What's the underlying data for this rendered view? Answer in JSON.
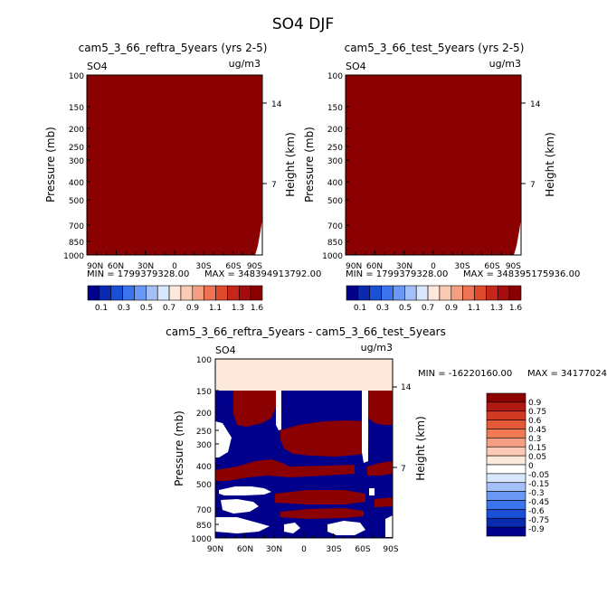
{
  "page_title": "SO4 DJF",
  "chart_data": [
    {
      "type": "heatmap",
      "title": "cam5_3_66_reftra_5years (yrs 2-5)",
      "variable": "SO4",
      "units": "ug/m3",
      "ylabel": "Pressure (mb)",
      "ylabel_right": "Height (km)",
      "x_ticks": [
        "90N",
        "60N",
        "30N",
        "0",
        "30S",
        "60S",
        "90S"
      ],
      "y_ticks": [
        "100",
        "150",
        "200",
        "250",
        "300",
        "400",
        "500",
        "700",
        "850",
        "1000"
      ],
      "height_ticks": [
        "14",
        "7"
      ],
      "ylim": [
        1000,
        100
      ],
      "min_label": "MIN = 1799379328.00",
      "max_label": "MAX = 348394913792.00",
      "fill_color": "#8b0000",
      "colorbar": {
        "labels": [
          "0.1",
          "0.3",
          "0.5",
          "0.7",
          "0.9",
          "1.1",
          "1.3",
          "1.6"
        ],
        "colors": [
          "#00008b",
          "#0a2bb0",
          "#1a4fd6",
          "#3a74ee",
          "#6a98f4",
          "#a3c0f8",
          "#d9e6fb",
          "#fde8dc",
          "#fbcab5",
          "#f59f82",
          "#ee7355",
          "#e04a2c",
          "#c8261a",
          "#a60c0c",
          "#8b0000"
        ]
      }
    },
    {
      "type": "heatmap",
      "title": "cam5_3_66_test_5years (yrs 2-5)",
      "variable": "SO4",
      "units": "ug/m3",
      "ylabel": "Pressure (mb)",
      "ylabel_right": "Height (km)",
      "x_ticks": [
        "90N",
        "60N",
        "30N",
        "0",
        "30S",
        "60S",
        "90S"
      ],
      "y_ticks": [
        "100",
        "150",
        "200",
        "250",
        "300",
        "400",
        "500",
        "700",
        "850",
        "1000"
      ],
      "height_ticks": [
        "14",
        "7"
      ],
      "ylim": [
        1000,
        100
      ],
      "min_label": "MIN = 1799379328.00",
      "max_label": "MAX = 348395175936.00",
      "fill_color": "#8b0000",
      "colorbar": {
        "labels": [
          "0.1",
          "0.3",
          "0.5",
          "0.7",
          "0.9",
          "1.1",
          "1.3",
          "1.6"
        ],
        "colors": [
          "#00008b",
          "#0a2bb0",
          "#1a4fd6",
          "#3a74ee",
          "#6a98f4",
          "#a3c0f8",
          "#d9e6fb",
          "#fde8dc",
          "#fbcab5",
          "#f59f82",
          "#ee7355",
          "#e04a2c",
          "#c8261a",
          "#a60c0c",
          "#8b0000"
        ]
      }
    },
    {
      "type": "heatmap",
      "title": "cam5_3_66_reftra_5years - cam5_3_66_test_5years",
      "variable": "SO4",
      "units": "ug/m3",
      "ylabel": "Pressure (mb)",
      "ylabel_right": "Height (km)",
      "x_ticks": [
        "90N",
        "60N",
        "30N",
        "0",
        "30S",
        "60S",
        "90S"
      ],
      "y_ticks": [
        "100",
        "150",
        "200",
        "250",
        "300",
        "400",
        "500",
        "700",
        "850",
        "1000"
      ],
      "height_ticks": [
        "14",
        "7"
      ],
      "ylim": [
        1000,
        100
      ],
      "min_label": "MIN = -16220160.00",
      "max_label": "MAX = 34177024",
      "colors": {
        "neg": "#00008b",
        "pos": "#8b0000",
        "top": "#fde8dc",
        "zero": "#ffffff"
      },
      "colorbar": {
        "labels": [
          "0.9",
          "0.75",
          "0.6",
          "0.45",
          "0.3",
          "0.15",
          "0.05",
          "0",
          "-0.05",
          "-0.15",
          "-0.3",
          "-0.45",
          "-0.6",
          "-0.75",
          "-0.9"
        ],
        "colors": [
          "#8b0000",
          "#b01a10",
          "#d03a22",
          "#e45a38",
          "#f07a52",
          "#f59f82",
          "#fbcab5",
          "#fde8dc",
          "#ffffff",
          "#d9e6fb",
          "#a3c0f8",
          "#6a98f4",
          "#3a74ee",
          "#1a4fd6",
          "#0a2bb0",
          "#00008b"
        ]
      }
    }
  ]
}
